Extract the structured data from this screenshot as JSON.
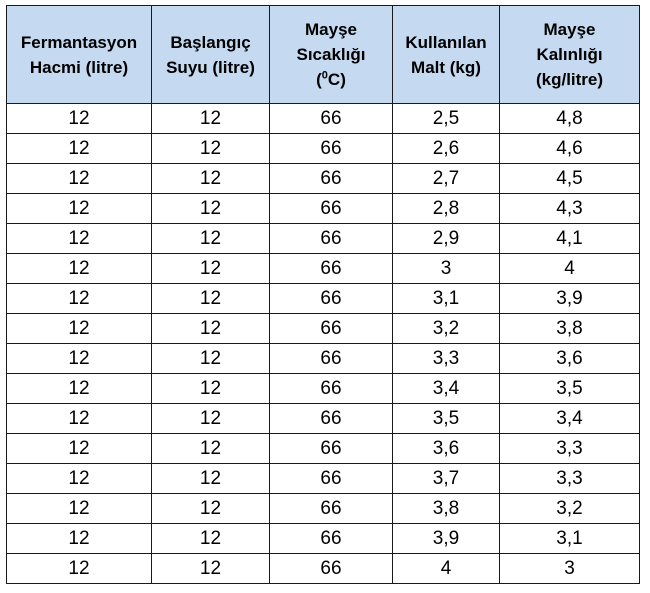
{
  "table": {
    "headers": [
      [
        "Fermantasyon",
        "Hacmi (litre)"
      ],
      [
        "Başlangıç",
        "Suyu (litre)"
      ],
      [
        "Mayşe",
        "Sıcaklığı",
        "(",
        "0",
        "C)"
      ],
      [
        "Kullanılan",
        "Malt (kg)"
      ],
      [
        "Mayşe",
        "Kalınlığı",
        "(kg/litre)"
      ]
    ],
    "rows": [
      [
        "12",
        "12",
        "66",
        "2,5",
        "4,8"
      ],
      [
        "12",
        "12",
        "66",
        "2,6",
        "4,6"
      ],
      [
        "12",
        "12",
        "66",
        "2,7",
        "4,5"
      ],
      [
        "12",
        "12",
        "66",
        "2,8",
        "4,3"
      ],
      [
        "12",
        "12",
        "66",
        "2,9",
        "4,1"
      ],
      [
        "12",
        "12",
        "66",
        "3",
        "4"
      ],
      [
        "12",
        "12",
        "66",
        "3,1",
        "3,9"
      ],
      [
        "12",
        "12",
        "66",
        "3,2",
        "3,8"
      ],
      [
        "12",
        "12",
        "66",
        "3,3",
        "3,6"
      ],
      [
        "12",
        "12",
        "66",
        "3,4",
        "3,5"
      ],
      [
        "12",
        "12",
        "66",
        "3,5",
        "3,4"
      ],
      [
        "12",
        "12",
        "66",
        "3,6",
        "3,3"
      ],
      [
        "12",
        "12",
        "66",
        "3,7",
        "3,3"
      ],
      [
        "12",
        "12",
        "66",
        "3,8",
        "3,2"
      ],
      [
        "12",
        "12",
        "66",
        "3,9",
        "3,1"
      ],
      [
        "12",
        "12",
        "66",
        "4",
        "3"
      ]
    ]
  },
  "colors": {
    "header_background": "#c5d9f0",
    "border": "#1a1a1a",
    "text": "#000000"
  }
}
